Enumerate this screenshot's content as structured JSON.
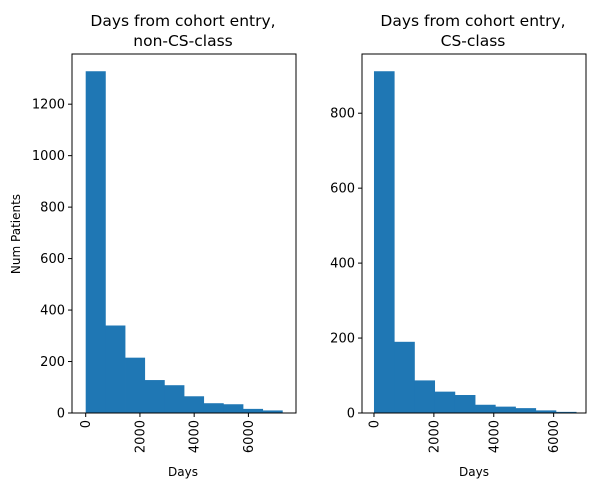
{
  "chart_data": [
    {
      "type": "bar",
      "title_lines": [
        "Days from cohort entry,",
        "non-CS-class"
      ],
      "xlabel": "Days",
      "ylabel": "Num Patients",
      "bin_edges": [
        0,
        725,
        1450,
        2175,
        2900,
        3625,
        4350,
        5075,
        5800,
        6525,
        7250
      ],
      "values": [
        1328,
        340,
        215,
        128,
        108,
        65,
        38,
        34,
        16,
        10
      ],
      "xlim": [
        -505,
        7755
      ],
      "ylim": [
        0,
        1395
      ],
      "xticks": [
        0,
        2000,
        4000,
        6000
      ],
      "xtick_labels": [
        "0",
        "2000",
        "4000",
        "6000"
      ],
      "yticks": [
        0,
        200,
        400,
        600,
        800,
        1000,
        1200
      ],
      "ytick_labels": [
        "0",
        "200",
        "400",
        "600",
        "800",
        "1000",
        "1200"
      ],
      "color": "#1f77b4"
    },
    {
      "type": "bar",
      "title_lines": [
        "Days from cohort entry,",
        "CS-class"
      ],
      "xlabel": "Days",
      "ylabel": "",
      "bin_edges": [
        0,
        675,
        1350,
        2025,
        2700,
        3375,
        4050,
        4725,
        5400,
        6075,
        6750
      ],
      "values": [
        912,
        190,
        87,
        57,
        48,
        22,
        17,
        13,
        7,
        3
      ],
      "xlim": [
        -400,
        7080
      ],
      "ylim": [
        0,
        958
      ],
      "xticks": [
        0,
        2000,
        4000,
        6000
      ],
      "xtick_labels": [
        "0",
        "2000",
        "4000",
        "6000"
      ],
      "yticks": [
        0,
        200,
        400,
        600,
        800
      ],
      "ytick_labels": [
        "0",
        "200",
        "400",
        "600",
        "800"
      ],
      "color": "#1f77b4"
    }
  ]
}
